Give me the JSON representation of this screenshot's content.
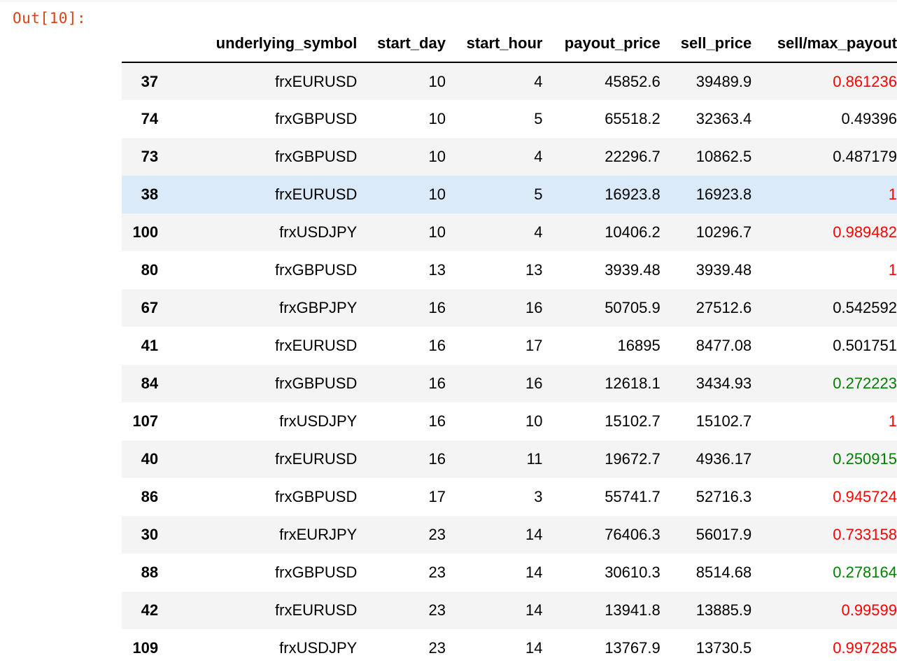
{
  "prompt": {
    "label": "Out[10]:"
  },
  "colors": {
    "prompt": "#d84315",
    "red": "#ff0000",
    "green": "#008000",
    "black": "#000000",
    "hover_row": "#dbeaf8",
    "stripe": "#f4f4f4"
  },
  "table": {
    "columns": [
      "",
      "underlying_symbol",
      "start_day",
      "start_hour",
      "payout_price",
      "sell_price",
      "sell/max_payout"
    ],
    "hovered_row_index": 3,
    "rows": [
      {
        "index": "37",
        "underlying_symbol": "frxEURUSD",
        "start_day": "10",
        "start_hour": "4",
        "payout_price": "45852.6",
        "sell_price": "39489.9",
        "ratio": "0.861236",
        "ratio_color": "red"
      },
      {
        "index": "74",
        "underlying_symbol": "frxGBPUSD",
        "start_day": "10",
        "start_hour": "5",
        "payout_price": "65518.2",
        "sell_price": "32363.4",
        "ratio": "0.49396",
        "ratio_color": "black"
      },
      {
        "index": "73",
        "underlying_symbol": "frxGBPUSD",
        "start_day": "10",
        "start_hour": "4",
        "payout_price": "22296.7",
        "sell_price": "10862.5",
        "ratio": "0.487179",
        "ratio_color": "black"
      },
      {
        "index": "38",
        "underlying_symbol": "frxEURUSD",
        "start_day": "10",
        "start_hour": "5",
        "payout_price": "16923.8",
        "sell_price": "16923.8",
        "ratio": "1",
        "ratio_color": "red"
      },
      {
        "index": "100",
        "underlying_symbol": "frxUSDJPY",
        "start_day": "10",
        "start_hour": "4",
        "payout_price": "10406.2",
        "sell_price": "10296.7",
        "ratio": "0.989482",
        "ratio_color": "red"
      },
      {
        "index": "80",
        "underlying_symbol": "frxGBPUSD",
        "start_day": "13",
        "start_hour": "13",
        "payout_price": "3939.48",
        "sell_price": "3939.48",
        "ratio": "1",
        "ratio_color": "red"
      },
      {
        "index": "67",
        "underlying_symbol": "frxGBPJPY",
        "start_day": "16",
        "start_hour": "16",
        "payout_price": "50705.9",
        "sell_price": "27512.6",
        "ratio": "0.542592",
        "ratio_color": "black"
      },
      {
        "index": "41",
        "underlying_symbol": "frxEURUSD",
        "start_day": "16",
        "start_hour": "17",
        "payout_price": "16895",
        "sell_price": "8477.08",
        "ratio": "0.501751",
        "ratio_color": "black"
      },
      {
        "index": "84",
        "underlying_symbol": "frxGBPUSD",
        "start_day": "16",
        "start_hour": "16",
        "payout_price": "12618.1",
        "sell_price": "3434.93",
        "ratio": "0.272223",
        "ratio_color": "green"
      },
      {
        "index": "107",
        "underlying_symbol": "frxUSDJPY",
        "start_day": "16",
        "start_hour": "10",
        "payout_price": "15102.7",
        "sell_price": "15102.7",
        "ratio": "1",
        "ratio_color": "red"
      },
      {
        "index": "40",
        "underlying_symbol": "frxEURUSD",
        "start_day": "16",
        "start_hour": "11",
        "payout_price": "19672.7",
        "sell_price": "4936.17",
        "ratio": "0.250915",
        "ratio_color": "green"
      },
      {
        "index": "86",
        "underlying_symbol": "frxGBPUSD",
        "start_day": "17",
        "start_hour": "3",
        "payout_price": "55741.7",
        "sell_price": "52716.3",
        "ratio": "0.945724",
        "ratio_color": "red"
      },
      {
        "index": "30",
        "underlying_symbol": "frxEURJPY",
        "start_day": "23",
        "start_hour": "14",
        "payout_price": "76406.3",
        "sell_price": "56017.9",
        "ratio": "0.733158",
        "ratio_color": "red"
      },
      {
        "index": "88",
        "underlying_symbol": "frxGBPUSD",
        "start_day": "23",
        "start_hour": "14",
        "payout_price": "30610.3",
        "sell_price": "8514.68",
        "ratio": "0.278164",
        "ratio_color": "green"
      },
      {
        "index": "42",
        "underlying_symbol": "frxEURUSD",
        "start_day": "23",
        "start_hour": "14",
        "payout_price": "13941.8",
        "sell_price": "13885.9",
        "ratio": "0.99599",
        "ratio_color": "red"
      },
      {
        "index": "109",
        "underlying_symbol": "frxUSDJPY",
        "start_day": "23",
        "start_hour": "14",
        "payout_price": "13767.9",
        "sell_price": "13730.5",
        "ratio": "0.997285",
        "ratio_color": "red"
      }
    ]
  }
}
